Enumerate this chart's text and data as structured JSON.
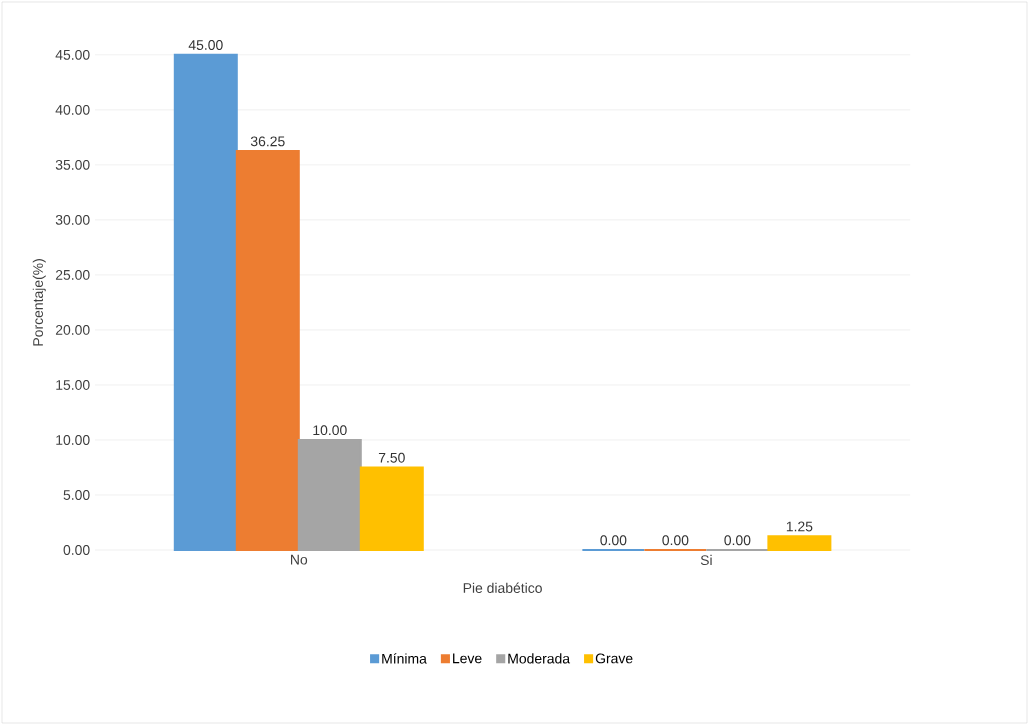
{
  "chart_data": {
    "type": "bar",
    "xlabel": "Pie diabético",
    "ylabel": "Porcentaje(%)",
    "categories": [
      "No",
      "Si"
    ],
    "series": [
      {
        "name": "Mínima",
        "color": "#5b9bd5",
        "values": [
          45.0,
          0.0
        ],
        "value_labels": [
          "45.00",
          "0.00"
        ]
      },
      {
        "name": "Leve",
        "color": "#ed7d31",
        "values": [
          36.25,
          0.0
        ],
        "value_labels": [
          "36.25",
          "0.00"
        ]
      },
      {
        "name": "Moderada",
        "color": "#a5a5a5",
        "values": [
          10.0,
          0.0
        ],
        "value_labels": [
          "10.00",
          "0.00"
        ]
      },
      {
        "name": "Grave",
        "color": "#ffc000",
        "values": [
          7.5,
          1.25
        ],
        "value_labels": [
          "7.50",
          "1.25"
        ]
      }
    ],
    "ylim": [
      0,
      45
    ],
    "yticks": [
      {
        "value": 0,
        "label": "0.00"
      },
      {
        "value": 5,
        "label": "5.00"
      },
      {
        "value": 10,
        "label": "10.00"
      },
      {
        "value": 15,
        "label": "15.00"
      },
      {
        "value": 20,
        "label": "20.00"
      },
      {
        "value": 25,
        "label": "25.00"
      },
      {
        "value": 30,
        "label": "30.00"
      },
      {
        "value": 35,
        "label": "35.00"
      },
      {
        "value": 40,
        "label": "40.00"
      },
      {
        "value": 45,
        "label": "45.00"
      }
    ],
    "grid": "y",
    "legend": "bottom"
  }
}
